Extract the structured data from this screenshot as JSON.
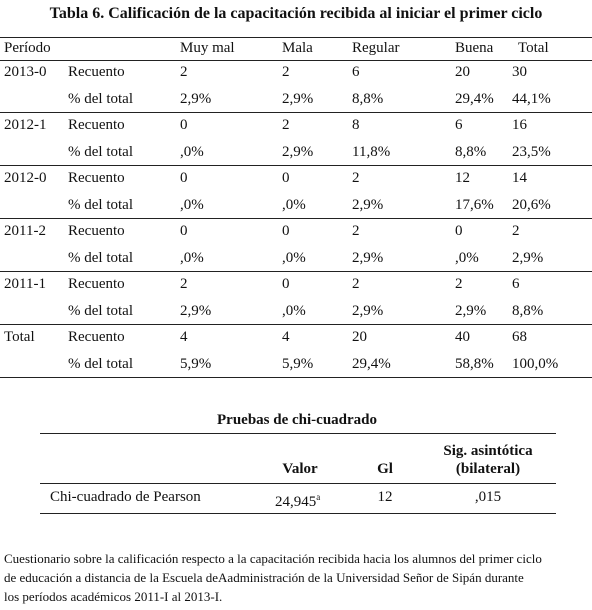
{
  "title": "Tabla 6. Calificación de la capacitación recibida al iniciar el primer ciclo",
  "table": {
    "headers": [
      "Período",
      "Muy mal",
      "Mala",
      "Regular",
      "Buena",
      "Total"
    ],
    "groups": [
      {
        "period": "2013-0",
        "rows": [
          {
            "measure": "Recuento",
            "cells": [
              "2",
              "2",
              "6",
              "20",
              "30"
            ]
          },
          {
            "measure": "% del total",
            "cells": [
              "2,9%",
              "2,9%",
              "8,8%",
              "29,4%",
              "44,1%"
            ]
          }
        ]
      },
      {
        "period": "2012-1",
        "rows": [
          {
            "measure": "Recuento",
            "cells": [
              "0",
              "2",
              "8",
              "6",
              "16"
            ]
          },
          {
            "measure": "% del total",
            "cells": [
              ",0%",
              "2,9%",
              "11,8%",
              "8,8%",
              "23,5%"
            ]
          }
        ]
      },
      {
        "period": "2012-0",
        "rows": [
          {
            "measure": "Recuento",
            "cells": [
              "0",
              "0",
              "2",
              "12",
              "14"
            ]
          },
          {
            "measure": "% del total",
            "cells": [
              ",0%",
              ",0%",
              "2,9%",
              "17,6%",
              "20,6%"
            ]
          }
        ]
      },
      {
        "period": "2011-2",
        "rows": [
          {
            "measure": "Recuento",
            "cells": [
              "0",
              "0",
              "2",
              "0",
              "2"
            ]
          },
          {
            "measure": "% del total",
            "cells": [
              ",0%",
              ",0%",
              "2,9%",
              ",0%",
              "2,9%"
            ]
          }
        ]
      },
      {
        "period": "2011-1",
        "rows": [
          {
            "measure": "Recuento",
            "cells": [
              "2",
              "0",
              "2",
              "2",
              "6"
            ]
          },
          {
            "measure": "% del total",
            "cells": [
              "2,9%",
              ",0%",
              "2,9%",
              "2,9%",
              "8,8%"
            ]
          }
        ]
      },
      {
        "period": "Total",
        "rows": [
          {
            "measure": "Recuento",
            "cells": [
              "4",
              "4",
              "20",
              "40",
              "68"
            ]
          },
          {
            "measure": "% del total",
            "cells": [
              "5,9%",
              "5,9%",
              "29,4%",
              "58,8%",
              "100,0%"
            ]
          }
        ]
      }
    ]
  },
  "chi": {
    "title": "Pruebas de chi-cuadrado",
    "headers": {
      "value": "Valor",
      "gl": "Gl",
      "sig": [
        "Sig. asintótica",
        "(bilateral)"
      ]
    },
    "row": {
      "label": "Chi-cuadrado de Pearson",
      "value": "24,945",
      "sup": "a",
      "gl": "12",
      "sig": ",015"
    }
  },
  "note": [
    "Cuestionario sobre la calificación respecto a la capacitación recibida hacia los alumnos del primer ciclo",
    "de educación a distancia de la Escuela deAadministración de la Universidad Señor de Sipán durante",
    "los períodos académicos 2011-I al 2013-I."
  ]
}
